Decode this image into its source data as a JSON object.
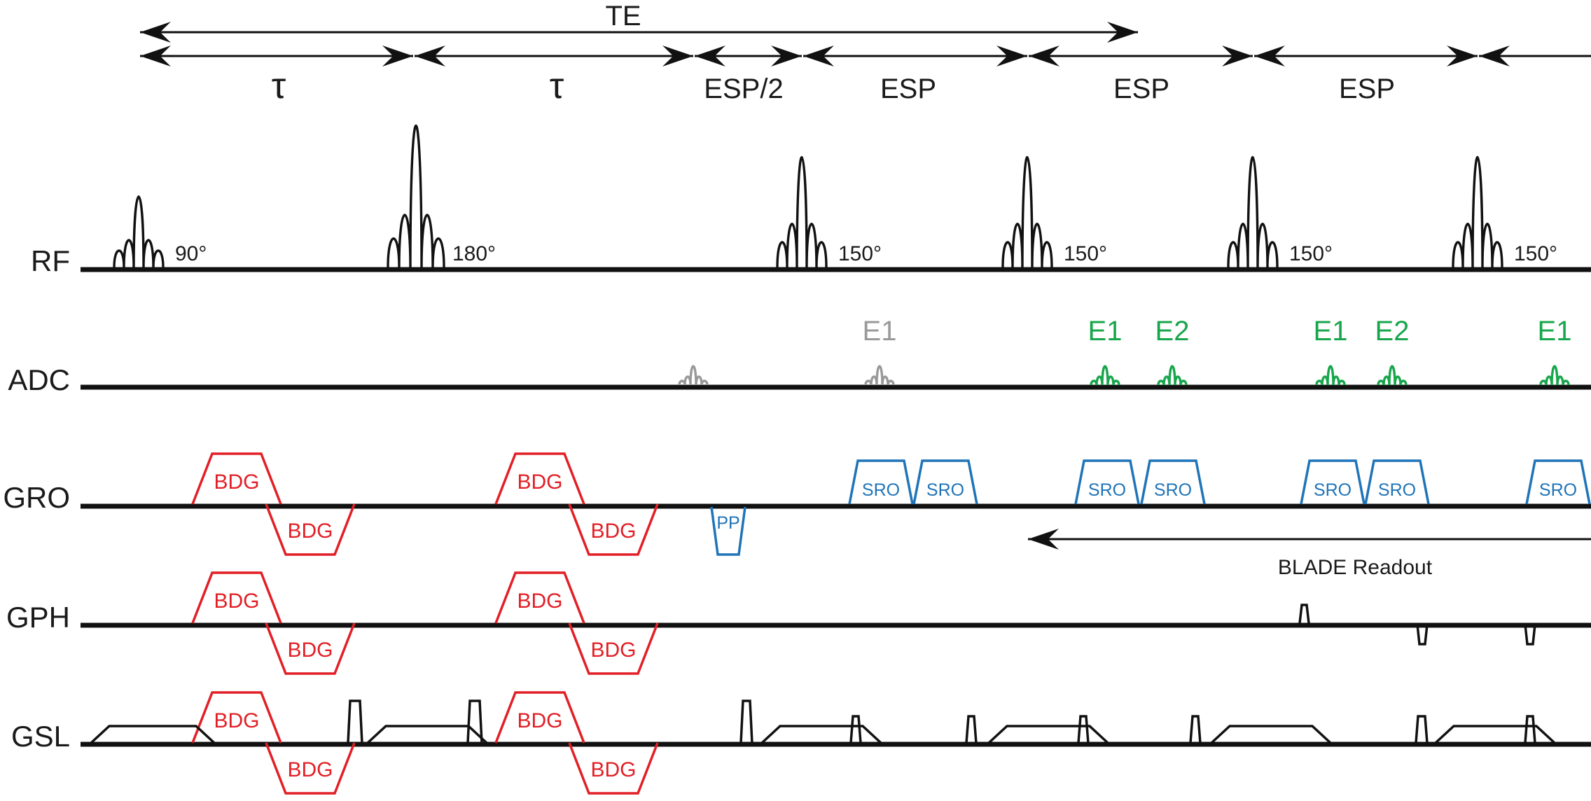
{
  "colors": {
    "ink": "#111111",
    "bdg": "#e21f26",
    "sro": "#1f74b8",
    "echo_inactive": "#999999",
    "echo_active": "#17a64b"
  },
  "timing": {
    "te_label": "TE",
    "tau_label": "τ",
    "half_esp_label": "ESP/2",
    "esp_label": "ESP"
  },
  "rows": {
    "rf": "RF",
    "adc": "ADC",
    "gro": "GRO",
    "gph": "GPH",
    "gsl": "GSL"
  },
  "rf_pulses": [
    {
      "angle": "90°"
    },
    {
      "angle": "180°"
    },
    {
      "angle": "150°"
    },
    {
      "angle": "150°"
    },
    {
      "angle": "150°"
    },
    {
      "angle": "150°"
    }
  ],
  "echo_labels": {
    "e1": "E1",
    "e2": "E2"
  },
  "gradients": {
    "bdg": "BDG",
    "sro": "SRO",
    "pp": "PP"
  },
  "readout_label": "BLADE Readout"
}
